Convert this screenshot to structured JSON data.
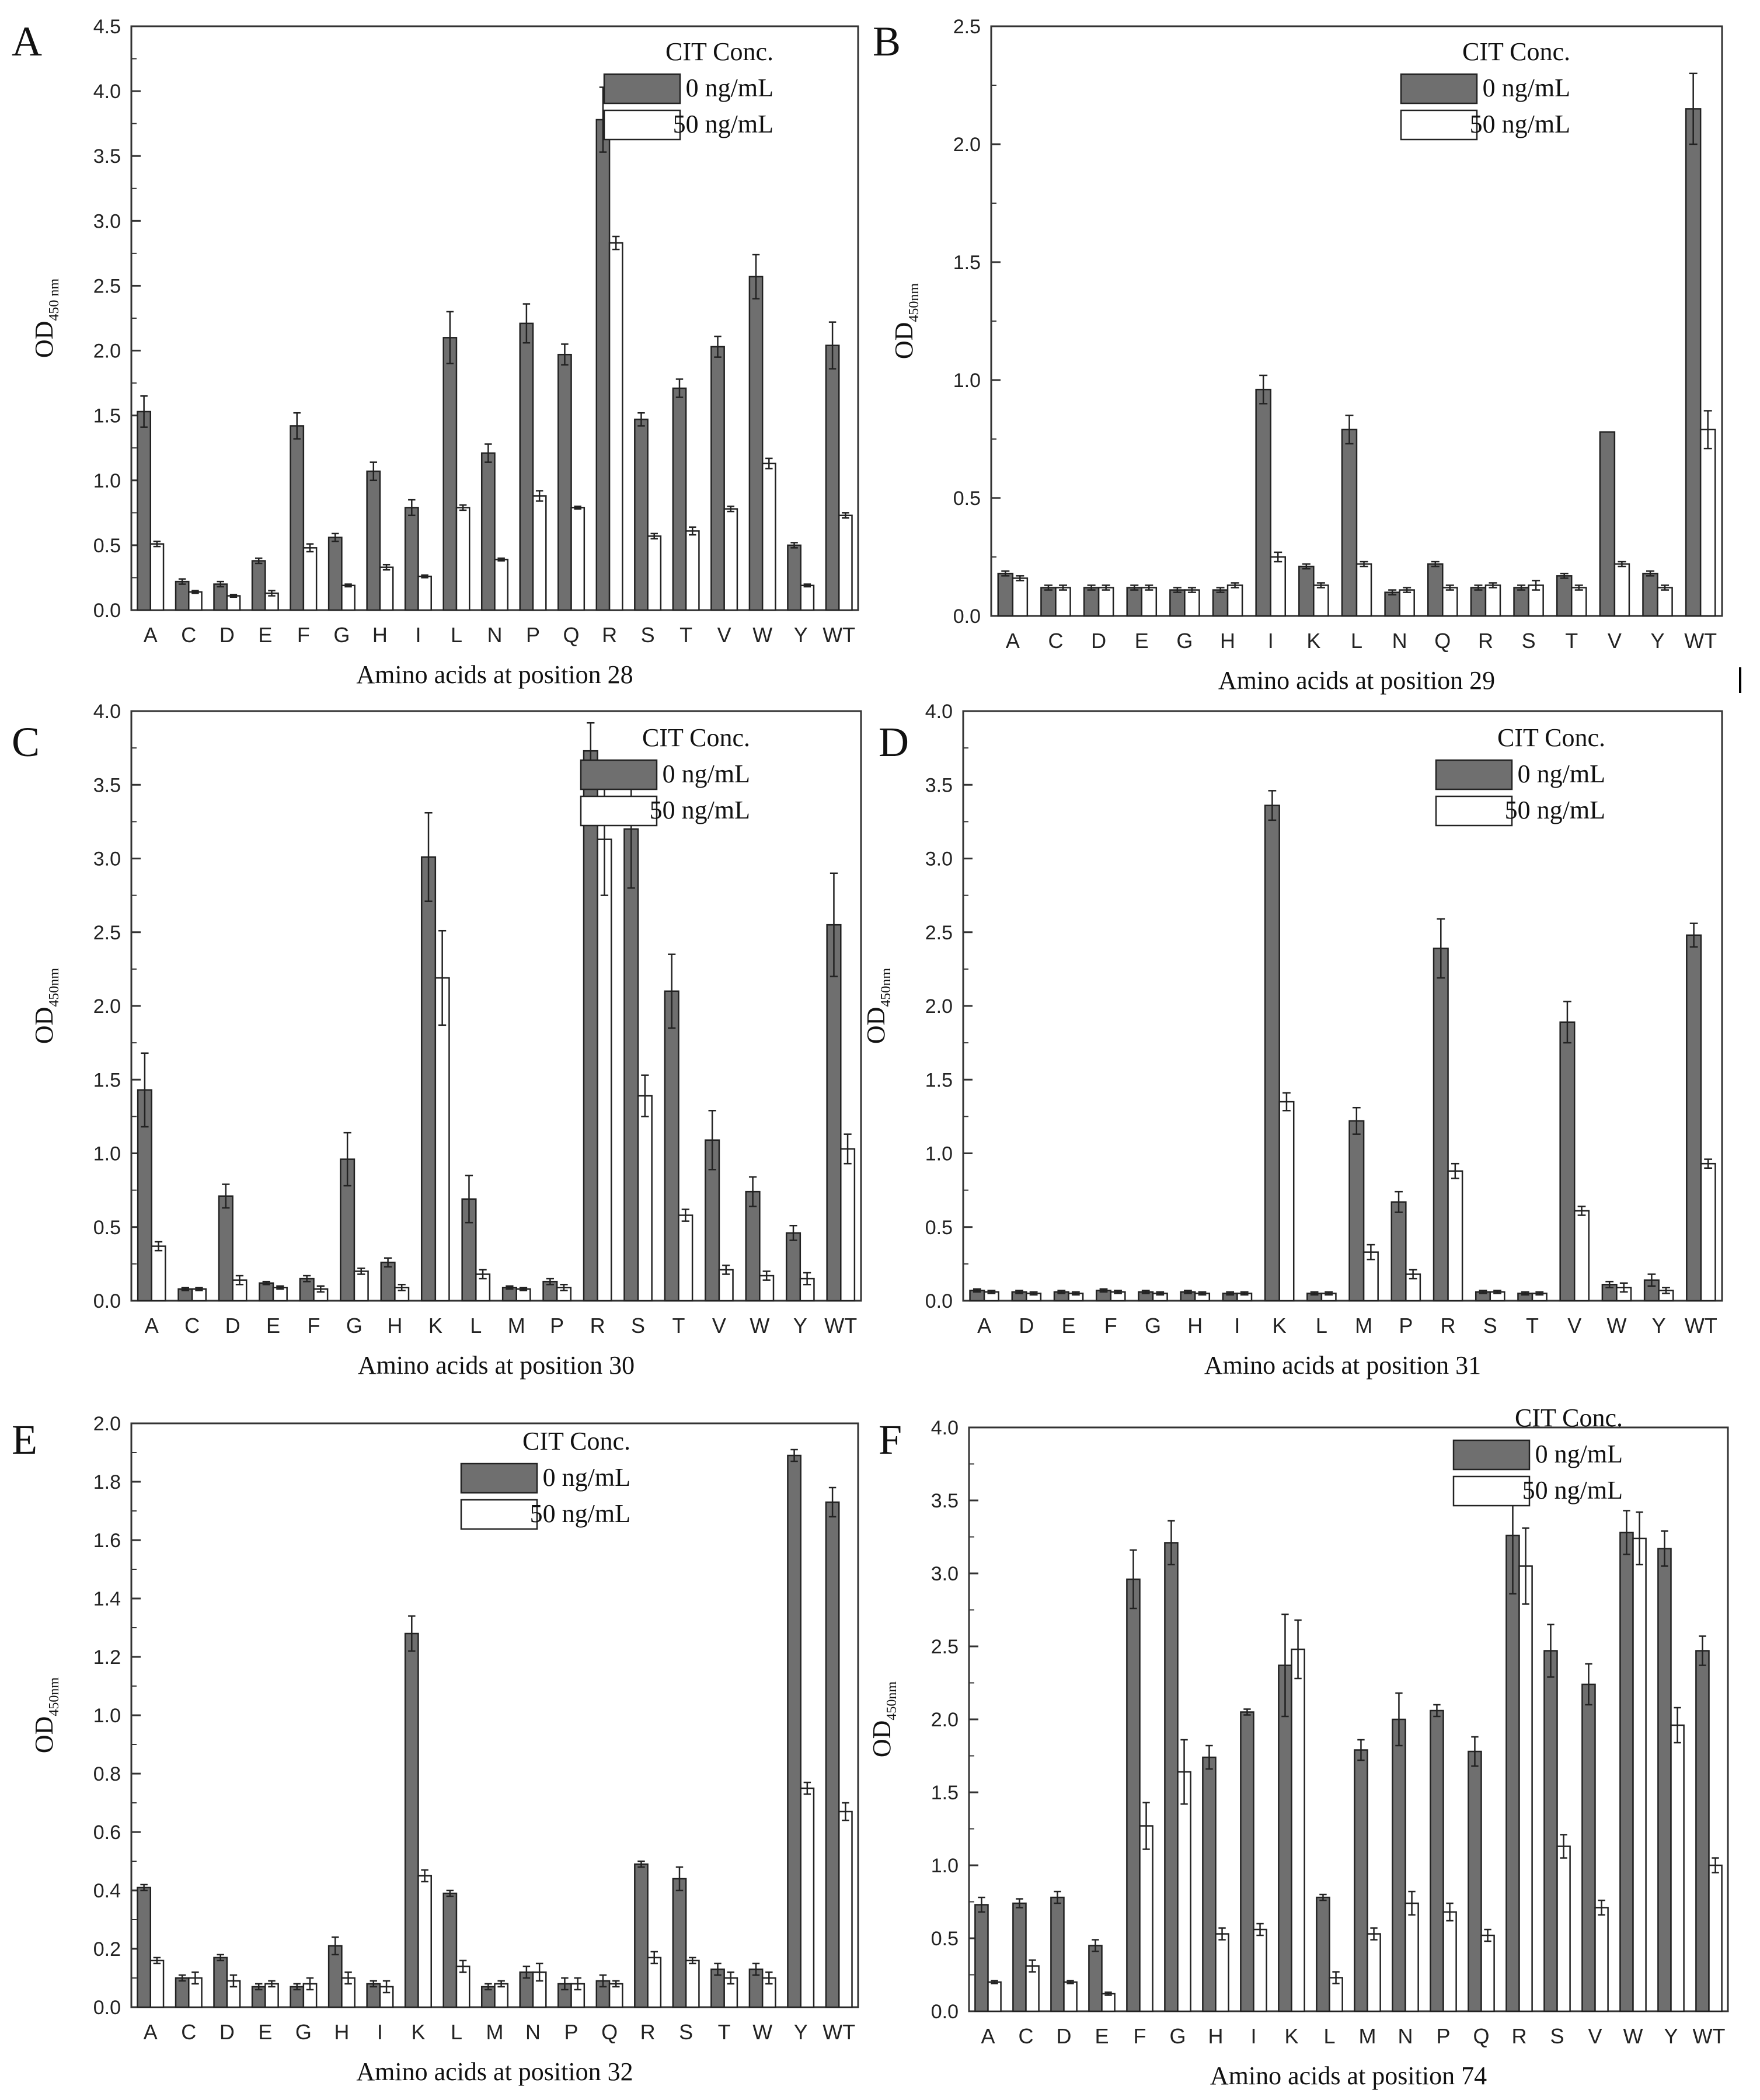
{
  "figure": {
    "legend": {
      "title": "CIT Conc.",
      "series_labels": [
        "0 ng/mL",
        "50 ng/mL"
      ]
    },
    "colors": {
      "series0": "#6f6f6f",
      "series1": "#ffffff",
      "stroke": "#222222",
      "axis": "#333333",
      "background": "#ffffff"
    }
  },
  "chart_data": [
    {
      "panel": "A",
      "type": "bar",
      "ylabel": "OD",
      "ylabel_sub": "450 nm",
      "xlabel": "Amino acids at position 28",
      "ylim": [
        0,
        4.5
      ],
      "yticks": [
        "0.0",
        "0.5",
        "1.0",
        "1.5",
        "2.0",
        "2.5",
        "3.0",
        "3.5",
        "4.0",
        "4.5"
      ],
      "categories": [
        "A",
        "C",
        "D",
        "E",
        "F",
        "G",
        "H",
        "I",
        "L",
        "N",
        "P",
        "Q",
        "R",
        "S",
        "T",
        "V",
        "W",
        "Y",
        "WT"
      ],
      "series": [
        {
          "name": "0 ng/mL",
          "values": [
            1.53,
            0.22,
            0.2,
            0.38,
            1.42,
            0.56,
            1.07,
            0.79,
            2.1,
            1.21,
            2.21,
            1.97,
            3.78,
            1.47,
            1.71,
            2.03,
            2.57,
            0.5,
            2.04
          ],
          "errors": [
            0.12,
            0.02,
            0.02,
            0.02,
            0.1,
            0.03,
            0.07,
            0.06,
            0.2,
            0.07,
            0.15,
            0.08,
            0.25,
            0.05,
            0.07,
            0.08,
            0.17,
            0.02,
            0.18
          ]
        },
        {
          "name": "50 ng/mL",
          "values": [
            0.51,
            0.14,
            0.11,
            0.13,
            0.48,
            0.19,
            0.33,
            0.26,
            0.79,
            0.39,
            0.88,
            0.79,
            2.83,
            0.57,
            0.61,
            0.78,
            1.13,
            0.19,
            0.73
          ],
          "errors": [
            0.02,
            0.01,
            0.01,
            0.02,
            0.03,
            0.01,
            0.02,
            0.01,
            0.02,
            0.01,
            0.04,
            0.01,
            0.05,
            0.02,
            0.03,
            0.02,
            0.04,
            0.01,
            0.02
          ]
        }
      ]
    },
    {
      "panel": "B",
      "type": "bar",
      "ylabel": "OD",
      "ylabel_sub": "450nm",
      "xlabel": "Amino acids at position 29",
      "ylim": [
        0,
        2.5
      ],
      "yticks": [
        "0.0",
        "0.5",
        "1.0",
        "1.5",
        "2.0",
        "2.5"
      ],
      "categories": [
        "A",
        "C",
        "D",
        "E",
        "G",
        "H",
        "I",
        "K",
        "L",
        "N",
        "Q",
        "R",
        "S",
        "T",
        "V",
        "Y",
        "WT"
      ],
      "series": [
        {
          "name": "0 ng/mL",
          "values": [
            0.18,
            0.12,
            0.12,
            0.12,
            0.11,
            0.11,
            0.96,
            0.21,
            0.79,
            0.1,
            0.22,
            0.12,
            0.12,
            0.17,
            0.78,
            0.18,
            2.15
          ],
          "errors": [
            0.01,
            0.01,
            0.01,
            0.01,
            0.01,
            0.01,
            0.06,
            0.01,
            0.06,
            0.01,
            0.01,
            0.01,
            0.01,
            0.01,
            0.0,
            0.01,
            0.15
          ]
        },
        {
          "name": "50 ng/mL",
          "values": [
            0.16,
            0.12,
            0.12,
            0.12,
            0.11,
            0.13,
            0.25,
            0.13,
            0.22,
            0.11,
            0.12,
            0.13,
            0.13,
            0.12,
            0.22,
            0.12,
            0.79
          ],
          "errors": [
            0.01,
            0.01,
            0.01,
            0.01,
            0.01,
            0.01,
            0.02,
            0.01,
            0.01,
            0.01,
            0.01,
            0.01,
            0.02,
            0.01,
            0.01,
            0.01,
            0.08
          ]
        }
      ]
    },
    {
      "panel": "C",
      "type": "bar",
      "ylabel": "OD",
      "ylabel_sub": "450nm",
      "xlabel": "Amino acids at position 30",
      "ylim": [
        0,
        4.0
      ],
      "yticks": [
        "0.0",
        "0.5",
        "1.0",
        "1.5",
        "2.0",
        "2.5",
        "3.0",
        "3.5",
        "4.0"
      ],
      "categories": [
        "A",
        "C",
        "D",
        "E",
        "F",
        "G",
        "H",
        "K",
        "L",
        "M",
        "P",
        "R",
        "S",
        "T",
        "V",
        "W",
        "Y",
        "WT"
      ],
      "series": [
        {
          "name": "0 ng/mL",
          "values": [
            1.43,
            0.08,
            0.71,
            0.12,
            0.15,
            0.96,
            0.26,
            3.01,
            0.69,
            0.09,
            0.13,
            3.73,
            3.2,
            2.1,
            1.09,
            0.74,
            0.46,
            2.55
          ],
          "errors": [
            0.25,
            0.01,
            0.08,
            0.01,
            0.02,
            0.18,
            0.03,
            0.3,
            0.16,
            0.01,
            0.02,
            0.19,
            0.4,
            0.25,
            0.2,
            0.1,
            0.05,
            0.35
          ]
        },
        {
          "name": "50 ng/mL",
          "values": [
            0.37,
            0.08,
            0.14,
            0.09,
            0.08,
            0.2,
            0.09,
            2.19,
            0.18,
            0.08,
            0.09,
            3.13,
            1.39,
            0.58,
            0.21,
            0.17,
            0.15,
            1.03
          ],
          "errors": [
            0.03,
            0.01,
            0.03,
            0.01,
            0.02,
            0.02,
            0.02,
            0.32,
            0.03,
            0.01,
            0.02,
            0.38,
            0.14,
            0.04,
            0.03,
            0.03,
            0.04,
            0.1
          ]
        }
      ]
    },
    {
      "panel": "D",
      "type": "bar",
      "ylabel": "OD",
      "ylabel_sub": "450nm",
      "xlabel": "Amino acids at position 31",
      "ylim": [
        0,
        4.0
      ],
      "yticks": [
        "0.0",
        "0.5",
        "1.0",
        "1.5",
        "2.0",
        "2.5",
        "3.0",
        "3.5",
        "4.0"
      ],
      "categories": [
        "A",
        "D",
        "E",
        "F",
        "G",
        "H",
        "I",
        "K",
        "L",
        "M",
        "P",
        "R",
        "S",
        "T",
        "V",
        "W",
        "Y",
        "WT"
      ],
      "series": [
        {
          "name": "0 ng/mL",
          "values": [
            0.07,
            0.06,
            0.06,
            0.07,
            0.06,
            0.06,
            0.05,
            3.36,
            0.05,
            1.22,
            0.67,
            2.39,
            0.06,
            0.05,
            1.89,
            0.11,
            0.14,
            2.48
          ],
          "errors": [
            0.01,
            0.01,
            0.01,
            0.01,
            0.01,
            0.01,
            0.01,
            0.1,
            0.01,
            0.09,
            0.07,
            0.2,
            0.01,
            0.01,
            0.14,
            0.02,
            0.04,
            0.08
          ]
        },
        {
          "name": "50 ng/mL",
          "values": [
            0.06,
            0.05,
            0.05,
            0.06,
            0.05,
            0.05,
            0.05,
            1.35,
            0.05,
            0.33,
            0.18,
            0.88,
            0.06,
            0.05,
            0.61,
            0.09,
            0.07,
            0.93
          ],
          "errors": [
            0.01,
            0.01,
            0.01,
            0.01,
            0.01,
            0.01,
            0.01,
            0.06,
            0.01,
            0.05,
            0.03,
            0.05,
            0.01,
            0.01,
            0.03,
            0.03,
            0.02,
            0.03
          ]
        }
      ]
    },
    {
      "panel": "E",
      "type": "bar",
      "ylabel": "OD",
      "ylabel_sub": "450nm",
      "xlabel": "Amino acids at position 32",
      "ylim": [
        0,
        2.0
      ],
      "yticks": [
        "0.0",
        "0.2",
        "0.4",
        "0.6",
        "0.8",
        "1.0",
        "1.2",
        "1.4",
        "1.6",
        "1.8",
        "2.0"
      ],
      "categories": [
        "A",
        "C",
        "D",
        "E",
        "G",
        "H",
        "I",
        "K",
        "L",
        "M",
        "N",
        "P",
        "Q",
        "R",
        "S",
        "T",
        "W",
        "Y",
        "WT"
      ],
      "series": [
        {
          "name": "0 ng/mL",
          "values": [
            0.41,
            0.1,
            0.17,
            0.07,
            0.07,
            0.21,
            0.08,
            1.28,
            0.39,
            0.07,
            0.12,
            0.08,
            0.09,
            0.49,
            0.44,
            0.13,
            0.13,
            1.89,
            1.73
          ],
          "errors": [
            0.01,
            0.01,
            0.01,
            0.01,
            0.01,
            0.03,
            0.01,
            0.06,
            0.01,
            0.01,
            0.02,
            0.02,
            0.02,
            0.01,
            0.04,
            0.02,
            0.02,
            0.02,
            0.05
          ]
        },
        {
          "name": "50 ng/mL",
          "values": [
            0.16,
            0.1,
            0.09,
            0.08,
            0.08,
            0.1,
            0.07,
            0.45,
            0.14,
            0.08,
            0.12,
            0.08,
            0.08,
            0.17,
            0.16,
            0.1,
            0.1,
            0.75,
            0.67
          ],
          "errors": [
            0.01,
            0.02,
            0.02,
            0.01,
            0.02,
            0.02,
            0.02,
            0.02,
            0.02,
            0.01,
            0.03,
            0.02,
            0.01,
            0.02,
            0.01,
            0.02,
            0.02,
            0.02,
            0.03
          ]
        }
      ]
    },
    {
      "panel": "F",
      "type": "bar",
      "ylabel": "OD",
      "ylabel_sub": "450nm",
      "xlabel": "Amino acids at position 74",
      "ylim": [
        0,
        4.0
      ],
      "yticks": [
        "0.0",
        "0.5",
        "1.0",
        "1.5",
        "2.0",
        "2.5",
        "3.0",
        "3.5",
        "4.0"
      ],
      "categories": [
        "A",
        "C",
        "D",
        "E",
        "F",
        "G",
        "H",
        "I",
        "K",
        "L",
        "M",
        "N",
        "P",
        "Q",
        "R",
        "S",
        "V",
        "W",
        "Y",
        "WT"
      ],
      "series": [
        {
          "name": "0 ng/mL",
          "values": [
            0.73,
            0.74,
            0.78,
            0.45,
            2.96,
            3.21,
            1.74,
            2.05,
            2.37,
            0.78,
            1.79,
            2.0,
            2.06,
            1.78,
            3.26,
            2.47,
            2.24,
            3.28,
            3.17,
            2.47
          ],
          "errors": [
            0.05,
            0.03,
            0.04,
            0.04,
            0.2,
            0.15,
            0.08,
            0.02,
            0.35,
            0.02,
            0.07,
            0.18,
            0.04,
            0.1,
            0.4,
            0.18,
            0.14,
            0.15,
            0.12,
            0.1
          ]
        },
        {
          "name": "50 ng/mL",
          "values": [
            0.2,
            0.31,
            0.2,
            0.12,
            1.27,
            1.64,
            0.53,
            0.56,
            2.48,
            0.23,
            0.53,
            0.74,
            0.68,
            0.52,
            3.05,
            1.13,
            0.71,
            3.24,
            1.96,
            1.0
          ],
          "errors": [
            0.01,
            0.04,
            0.01,
            0.01,
            0.16,
            0.22,
            0.04,
            0.04,
            0.2,
            0.04,
            0.04,
            0.08,
            0.06,
            0.04,
            0.26,
            0.08,
            0.05,
            0.18,
            0.12,
            0.05
          ]
        }
      ]
    }
  ]
}
